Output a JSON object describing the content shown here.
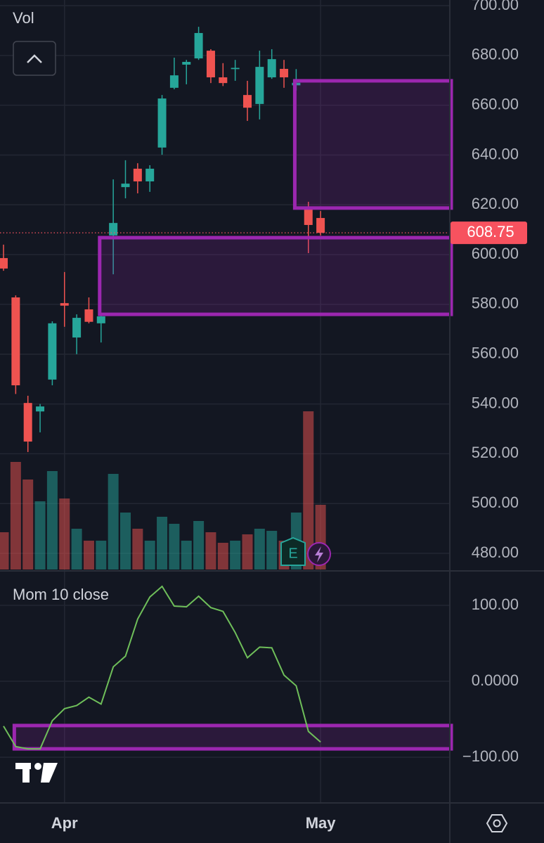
{
  "chart_data": [
    {
      "type": "candlestick",
      "volume_label": "Vol",
      "categories": [
        null,
        null,
        null,
        null,
        null,
        "Apr",
        null,
        null,
        null,
        null,
        null,
        null,
        null,
        null,
        null,
        null,
        null,
        null,
        null,
        null,
        null,
        null,
        null,
        null,
        null,
        null,
        "May"
      ],
      "open": [
        598.6,
        582.8,
        540.4,
        537.0,
        549.8,
        580.5,
        566.7,
        578.0,
        572.4,
        607.7,
        627.1,
        634.5,
        629.4,
        643.0,
        667.0,
        676.3,
        678.8,
        681.9,
        671.2,
        674.5,
        664.1,
        660.5,
        671.2,
        674.6,
        668.0,
        618.1,
        614.7
      ],
      "high": [
        604.0,
        583.6,
        543.3,
        540.0,
        573.2,
        593.0,
        576.0,
        582.8,
        576.6,
        630.2,
        637.9,
        636.7,
        635.9,
        664.1,
        679.1,
        678.2,
        691.5,
        682.5,
        676.9,
        678.2,
        669.8,
        681.9,
        682.5,
        678.2,
        674.5,
        621.2,
        617.5
      ],
      "low": [
        593.5,
        544.0,
        520.7,
        528.6,
        547.5,
        571.0,
        560.0,
        572.4,
        564.7,
        592.1,
        622.6,
        624.6,
        625.2,
        640.1,
        666.4,
        668.4,
        678.2,
        668.9,
        667.7,
        669.8,
        653.7,
        654.3,
        670.6,
        667.0,
        665.9,
        600.6,
        607.7
      ],
      "close": [
        594.4,
        547.5,
        524.9,
        539.0,
        572.4,
        579.5,
        574.6,
        573.0,
        575.2,
        612.7,
        628.5,
        629.4,
        634.5,
        662.7,
        672.0,
        677.4,
        689.0,
        671.2,
        668.9,
        675.0,
        659.0,
        675.4,
        678.5,
        671.2,
        669.0,
        611.9,
        608.75
      ],
      "volume": [
        53,
        153,
        128,
        97,
        140,
        101,
        58,
        41,
        41,
        136,
        81,
        58,
        41,
        75,
        65,
        41,
        69,
        53,
        38,
        41,
        50,
        58,
        55,
        41,
        81,
        225,
        92
      ],
      "up_color": "#26a69a",
      "down_color": "#ef5350",
      "last_price": 608.75,
      "last_price_color": "#f7525f",
      "zones": [
        {
          "start": 24,
          "top": 669.8,
          "bottom": 618.7
        },
        {
          "start": 8,
          "top": 606.8,
          "bottom": 576.0
        }
      ],
      "zone_color": "#9c27b0",
      "ylim": [
        472.95,
        702.26
      ],
      "yticks": [
        {
          "value": 480,
          "label": "480.00"
        },
        {
          "value": 500,
          "label": "500.00"
        },
        {
          "value": 520,
          "label": "520.00"
        },
        {
          "value": 540,
          "label": "540.00"
        },
        {
          "value": 560,
          "label": "560.00"
        },
        {
          "value": 580,
          "label": "580.00"
        },
        {
          "value": 600,
          "label": "600.00"
        },
        {
          "value": 620,
          "label": "620.00"
        },
        {
          "value": 640,
          "label": "640.00"
        },
        {
          "value": 660,
          "label": "660.00"
        },
        {
          "value": 680,
          "label": "680.00"
        },
        {
          "value": 700,
          "label": "700.00"
        }
      ],
      "grid": true
    },
    {
      "type": "line",
      "title": "Mom 10 close",
      "color": "#6fbf5a",
      "values": [
        -59,
        -86,
        -89,
        -89,
        -52,
        -36,
        -32,
        -21,
        -30,
        19,
        33,
        82,
        111,
        125,
        99,
        98,
        112,
        97,
        92,
        64,
        31,
        45,
        44,
        8,
        -6,
        -66,
        -80
      ],
      "zones": [
        {
          "start": 1,
          "top": -58.3,
          "bottom": -89
        }
      ],
      "zone_color": "#9c27b0",
      "ylim": [
        -160.2,
        144.4
      ],
      "yticks": [
        {
          "value": 100,
          "label": "100.00"
        },
        {
          "value": 0,
          "label": "0.0000"
        },
        {
          "value": -100,
          "label": "−100.00"
        }
      ],
      "grid": true
    }
  ]
}
